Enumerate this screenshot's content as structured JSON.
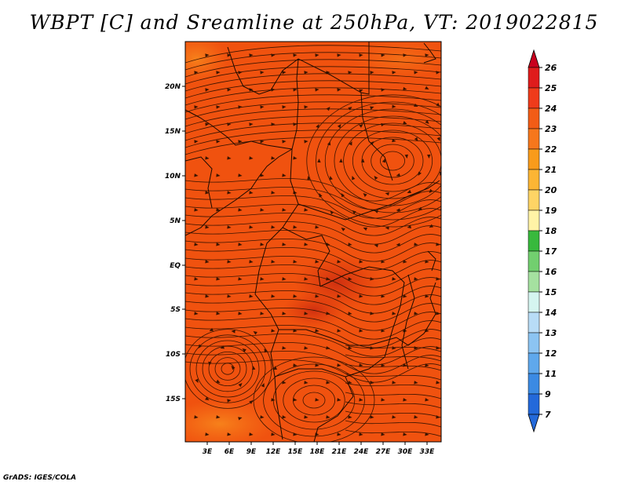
{
  "title": "WBPT [C] and Sreamline at 250hPa, VT: 2019022815",
  "credit": "GrADS: IGES/COLA",
  "lat_labels": [
    "20N",
    "15N",
    "10N",
    "5N",
    "EQ",
    "5S",
    "10S",
    "15S"
  ],
  "lon_labels": [
    "3E",
    "6E",
    "9E",
    "12E",
    "15E",
    "18E",
    "21E",
    "24E",
    "27E",
    "30E",
    "33E"
  ],
  "colorbar": {
    "labels": [
      "26",
      "25",
      "24",
      "23",
      "22",
      "21",
      "20",
      "19",
      "18",
      "17",
      "16",
      "15",
      "14",
      "13",
      "12",
      "11",
      "9",
      "7"
    ],
    "colors": [
      "#c8001e",
      "#df1c1c",
      "#ef3b1a",
      "#f25c16",
      "#f6771c",
      "#f99b1b",
      "#fcb534",
      "#fed465",
      "#fff3a6",
      "#38b93d",
      "#72cf6f",
      "#a5e1a0",
      "#d5f5f0",
      "#b8dcf6",
      "#8cc4f2",
      "#5fa8ec",
      "#3b8ae3",
      "#2369da"
    ]
  },
  "colors": {
    "field_main": "#f0520f",
    "field_dark": "#d9340f",
    "field_light": "#f7791a",
    "streamline": "#3a1400",
    "border": "#1a0a00"
  }
}
